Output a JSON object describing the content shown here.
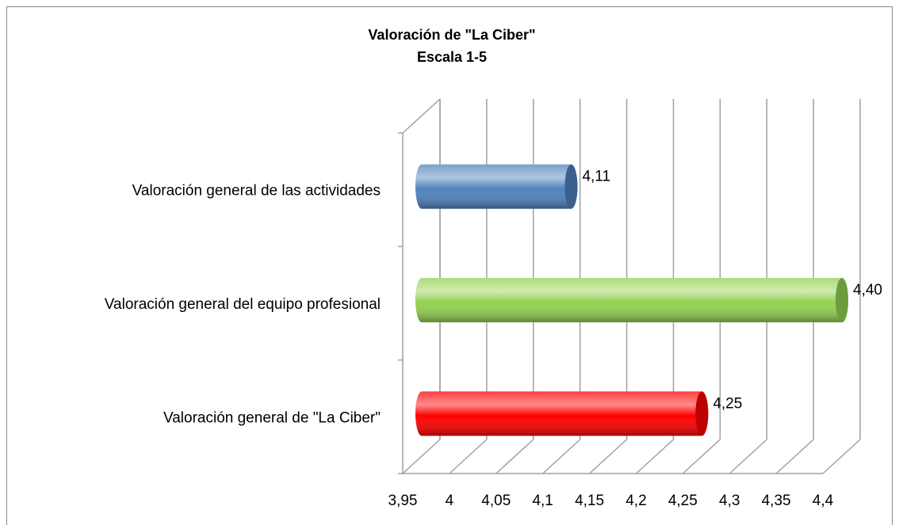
{
  "chart_data": {
    "type": "bar3d",
    "title": "Valoración de \"La Ciber\"",
    "subtitle": "Escala 1-5",
    "categories": [
      "Valoración general de las actividades",
      "Valoración general del equipo profesional",
      "Valoración general de \"La Ciber\""
    ],
    "series": [
      {
        "values": [
          4.11,
          4.4,
          4.25
        ],
        "value_labels": [
          "4,11",
          "4,40",
          "4,25"
        ],
        "colors": [
          "#4f81bd",
          "#92d050",
          "#ff0000"
        ]
      }
    ],
    "xlim": [
      3.95,
      4.4
    ],
    "xticks": [
      {
        "value": 3.95,
        "label": "3,95"
      },
      4,
      {
        "value": 4.05,
        "label": "4,05"
      },
      {
        "value": 4.1,
        "label": "4,1"
      },
      {
        "value": 4.15,
        "label": "4,15"
      },
      {
        "value": 4.2,
        "label": "4,2"
      },
      {
        "value": 4.25,
        "label": "4,25"
      },
      {
        "value": 4.3,
        "label": "4,3"
      },
      {
        "value": 4.35,
        "label": "4,35"
      },
      {
        "value": 4.4,
        "label": "4,4"
      }
    ],
    "grid": true
  }
}
